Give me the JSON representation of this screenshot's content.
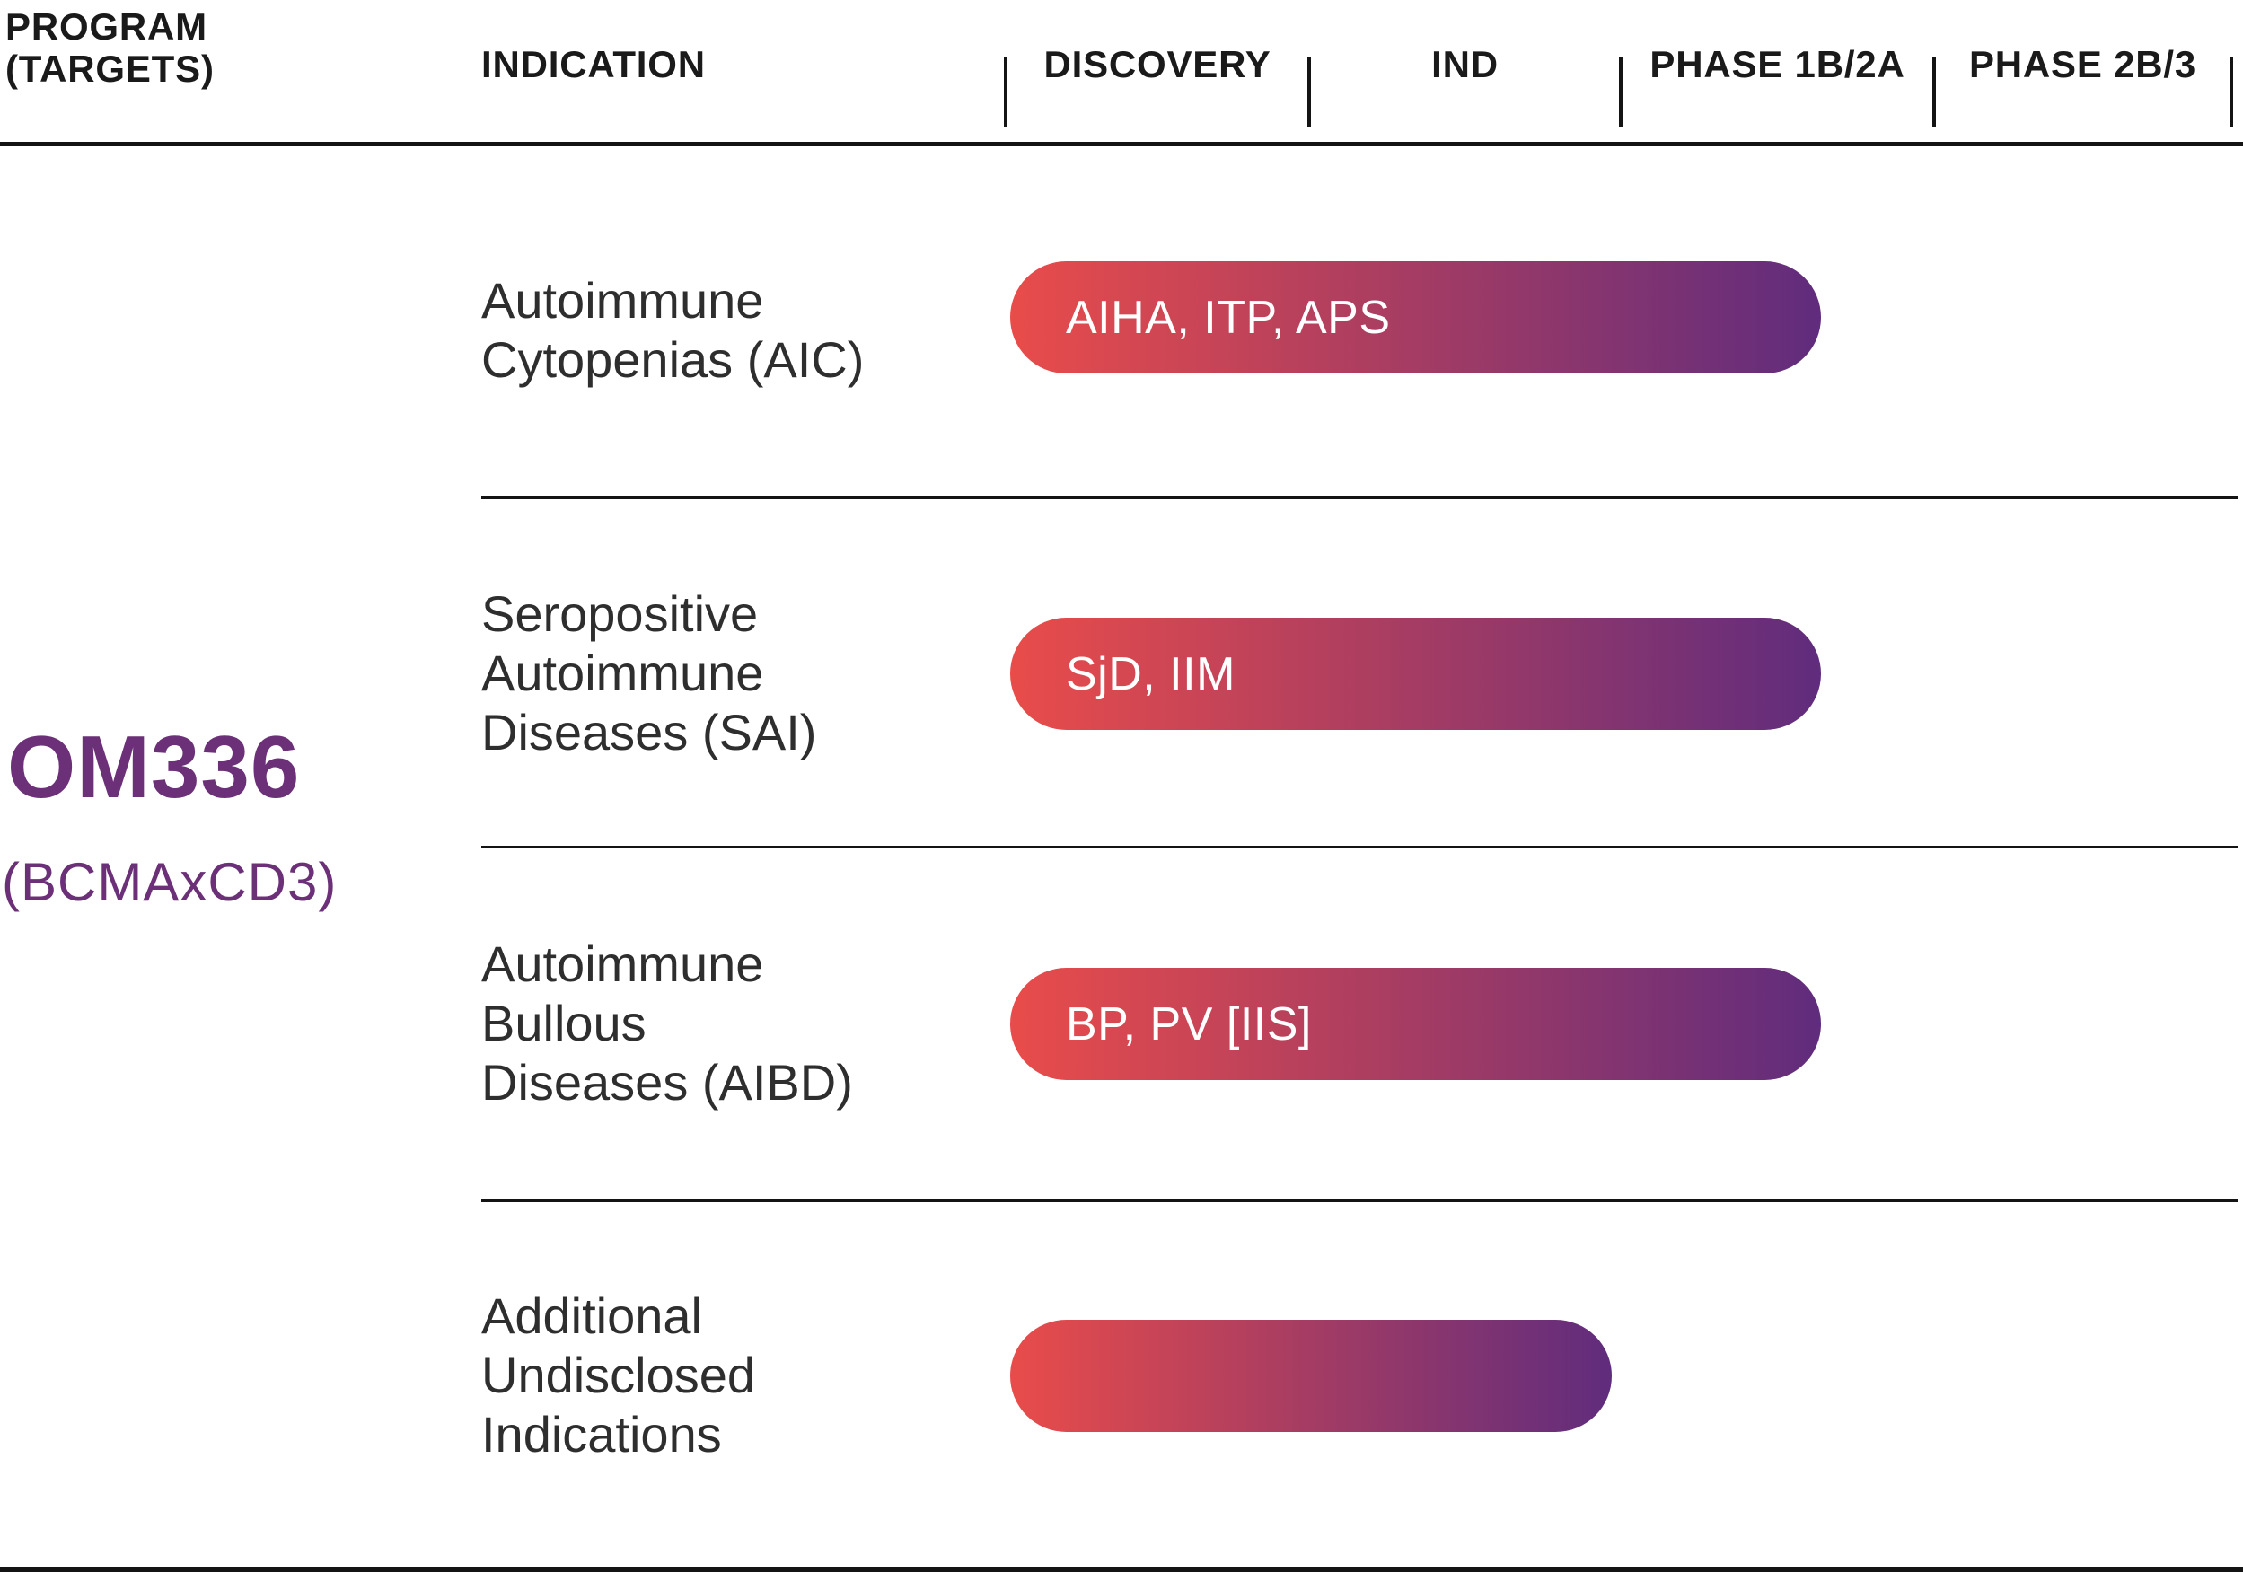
{
  "header": {
    "program_line1": "PROGRAM",
    "program_line2": "(TARGETS)",
    "indication_label": "INDICATION",
    "phases": [
      "DISCOVERY",
      "IND",
      "PHASE 1B/2A",
      "PHASE 2B/3"
    ]
  },
  "program": {
    "name": "OM336",
    "targets": "(BCMAxCD3)"
  },
  "rows": [
    {
      "lines": [
        "Autoimmune",
        "Cytopenias (AIC)"
      ]
    },
    {
      "lines": [
        "Seropositive",
        "Autoimmune",
        "Diseases (SAI)"
      ]
    },
    {
      "lines": [
        "Autoimmune",
        "Bullous",
        "Diseases (AIBD)"
      ]
    },
    {
      "lines": [
        "Additional",
        "Undisclosed",
        "Indications"
      ]
    }
  ],
  "chart_data": {
    "type": "bar",
    "orientation": "horizontal",
    "title": "OM336 (BCMAxCD3) development pipeline",
    "x_axis_phases": [
      "DISCOVERY",
      "IND",
      "PHASE 1B/2A",
      "PHASE 2B/3"
    ],
    "rows": [
      {
        "indication": "Autoimmune Cytopenias (AIC)",
        "bar_label": "AIHA, ITP, APS",
        "start_unit": 0,
        "end_unit": 2.64,
        "reached_phase": "PHASE 1B/2A"
      },
      {
        "indication": "Seropositive Autoimmune Diseases (SAI)",
        "bar_label": "SjD, IIM",
        "start_unit": 0,
        "end_unit": 2.64,
        "reached_phase": "PHASE 1B/2A"
      },
      {
        "indication": "Autoimmune Bullous Diseases (AIBD)",
        "bar_label": "BP, PV [IIS]",
        "start_unit": 0,
        "end_unit": 2.64,
        "reached_phase": "PHASE 1B/2A"
      },
      {
        "indication": "Additional Undisclosed Indications",
        "bar_label": "",
        "start_unit": 0,
        "end_unit": 1.97,
        "reached_phase": "IND"
      }
    ],
    "legend": "none",
    "grid": "off"
  },
  "colors": {
    "program_purple": "#6B3077",
    "bar_gradient_start": "#E94C4A",
    "bar_gradient_end": "#602C7D",
    "text_dark": "#1a1a1a",
    "label_dark": "#2e2e2e",
    "line_black": "#141414",
    "bar_text": "#ffffff"
  }
}
